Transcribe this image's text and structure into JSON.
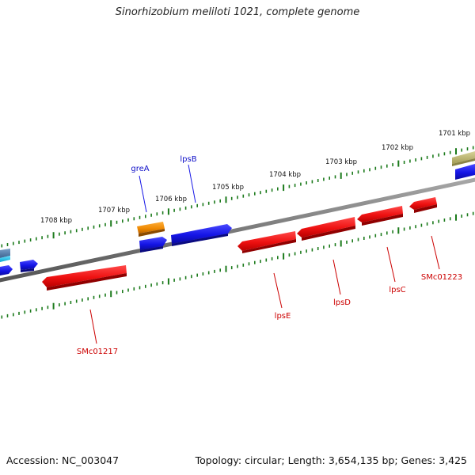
{
  "header": {
    "title": "Sinorhizobium meliloti 1021, complete genome"
  },
  "footer": {
    "accession": "Accession: NC_003047",
    "summary": "Topology: circular; Length: 3,654,135 bp; Genes: 3,425"
  },
  "ticks": [
    {
      "label": "1701 kbp"
    },
    {
      "label": "1702 kbp"
    },
    {
      "label": "1703 kbp"
    },
    {
      "label": "1704 kbp"
    },
    {
      "label": "1705 kbp"
    },
    {
      "label": "1706 kbp"
    },
    {
      "label": "1707 kbp"
    },
    {
      "label": "1708 kbp"
    }
  ],
  "genes_forward": [
    {
      "name": "greA",
      "color": "#1010c8"
    },
    {
      "name": "lpsB",
      "color": "#1010c8"
    }
  ],
  "genes_reverse": [
    {
      "name": "SMc01217",
      "color": "#cc0000"
    },
    {
      "name": "lpsE",
      "color": "#cc0000"
    },
    {
      "name": "lpsD",
      "color": "#cc0000"
    },
    {
      "name": "lpsC",
      "color": "#cc0000"
    },
    {
      "name": "SMc01223",
      "color": "#cc0000"
    }
  ],
  "colors": {
    "forward_gene": "#1515e6",
    "reverse_gene": "#ee1111",
    "tick": "#1b7a1b",
    "backbone": "#7f7f7f"
  }
}
